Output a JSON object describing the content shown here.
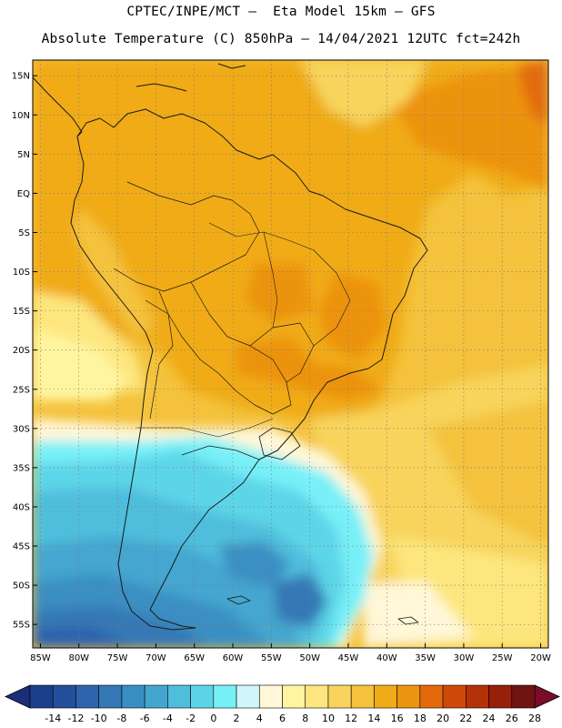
{
  "header": {
    "line1": "CPTEC/INPE/MCT –  Eta Model 15km – GFS",
    "line2": "Absolute Temperature (C) 850hPa – 14/04/2021 12UTC fct=242h"
  },
  "map": {
    "lon_range": [
      -86,
      -19
    ],
    "lat_range": [
      -58,
      17
    ],
    "lat_ticks": [
      {
        "value": 15,
        "label": "15N"
      },
      {
        "value": 10,
        "label": "10N"
      },
      {
        "value": 5,
        "label": "5N"
      },
      {
        "value": 0,
        "label": "EQ"
      },
      {
        "value": -5,
        "label": "5S"
      },
      {
        "value": -10,
        "label": "10S"
      },
      {
        "value": -15,
        "label": "15S"
      },
      {
        "value": -20,
        "label": "20S"
      },
      {
        "value": -25,
        "label": "25S"
      },
      {
        "value": -30,
        "label": "30S"
      },
      {
        "value": -35,
        "label": "35S"
      },
      {
        "value": -40,
        "label": "40S"
      },
      {
        "value": -45,
        "label": "45S"
      },
      {
        "value": -50,
        "label": "50S"
      },
      {
        "value": -55,
        "label": "55S"
      }
    ],
    "lon_ticks": [
      {
        "value": -85,
        "label": "85W"
      },
      {
        "value": -80,
        "label": "80W"
      },
      {
        "value": -75,
        "label": "75W"
      },
      {
        "value": -70,
        "label": "70W"
      },
      {
        "value": -65,
        "label": "65W"
      },
      {
        "value": -60,
        "label": "60W"
      },
      {
        "value": -55,
        "label": "55W"
      },
      {
        "value": -50,
        "label": "50W"
      },
      {
        "value": -45,
        "label": "45W"
      },
      {
        "value": -40,
        "label": "40W"
      },
      {
        "value": -35,
        "label": "35W"
      },
      {
        "value": -30,
        "label": "30W"
      },
      {
        "value": -25,
        "label": "25W"
      },
      {
        "value": -20,
        "label": "20W"
      }
    ]
  },
  "colorbar": {
    "labels": [
      "-14",
      "-12",
      "-10",
      "-8",
      "-6",
      "-4",
      "-2",
      "0",
      "2",
      "4",
      "6",
      "8",
      "10",
      "12",
      "14",
      "16",
      "18",
      "20",
      "22",
      "24",
      "26",
      "28"
    ],
    "colors": [
      "#1c3f8c",
      "#244f9c",
      "#2e63ad",
      "#3478b5",
      "#3a8fc2",
      "#44a6cf",
      "#4fbedc",
      "#5dd5e8",
      "#78f0f8",
      "#d0f6fa",
      "#fff7d8",
      "#fff5a0",
      "#fde67e",
      "#f8d45c",
      "#f4c23c",
      "#f0ab18",
      "#ec9310",
      "#e36a0c",
      "#cf4a0a",
      "#b43208",
      "#96200a",
      "#6f1410"
    ],
    "under_color": "#1c2e7a",
    "over_color": "#7a0e2a"
  }
}
